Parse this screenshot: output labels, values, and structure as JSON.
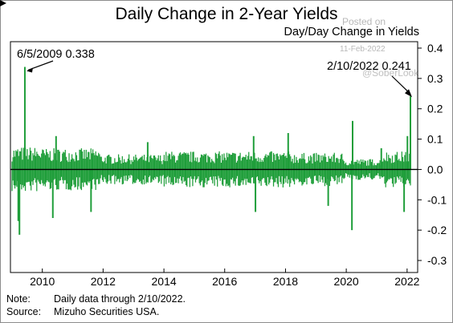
{
  "chart_data": {
    "type": "bar",
    "title": "Daily Change in 2-Year Yields",
    "ylabel": "Day/Day Change in Yields",
    "xlabel": "",
    "x_range": [
      "2009-01-02",
      "2022-02-10"
    ],
    "ylim": [
      -0.3,
      0.4
    ],
    "y_ticks": [
      "-0.3",
      "-0.2",
      "-0.1",
      "0.0",
      "0.1",
      "0.2",
      "0.3",
      "0.4"
    ],
    "x_ticks": [
      "2010",
      "2012",
      "2014",
      "2016",
      "2018",
      "2020",
      "2022"
    ],
    "grid": false,
    "bar_color": "#1f9e3a",
    "zero_line_color": "#000000",
    "series": [
      {
        "values": [
          {
            "date": "2009-06-05",
            "value": 0.338
          },
          {
            "date": "2009-04-01",
            "value": -0.215
          },
          {
            "date": "2009-03-18",
            "value": -0.17
          },
          {
            "date": "2010-05-07",
            "value": -0.16
          },
          {
            "date": "2010-06-15",
            "value": 0.11
          },
          {
            "date": "2011-08-09",
            "value": -0.14
          },
          {
            "date": "2013-06-20",
            "value": 0.09
          },
          {
            "date": "2016-12-14",
            "value": 0.11
          },
          {
            "date": "2017-01-05",
            "value": -0.14
          },
          {
            "date": "2018-02-02",
            "value": 0.12
          },
          {
            "date": "2019-05-29",
            "value": -0.12
          },
          {
            "date": "2020-03-09",
            "value": -0.2
          },
          {
            "date": "2020-03-17",
            "value": 0.16
          },
          {
            "date": "2021-02-25",
            "value": 0.07
          },
          {
            "date": "2021-11-26",
            "value": -0.14
          },
          {
            "date": "2022-01-05",
            "value": 0.11
          },
          {
            "date": "2022-02-10",
            "value": 0.241
          }
        ]
      }
    ],
    "annotations": [
      {
        "text": "6/5/2009 0.338",
        "date": "2009-06-05",
        "value": 0.338
      },
      {
        "text": "2/10/2022 0.241",
        "date": "2022-02-10",
        "value": 0.241
      }
    ]
  },
  "footer": {
    "note_label": "Note:",
    "note_text": "Daily data through 2/10/2022.",
    "source_label": "Source:",
    "source_text": "Mizuho Securities USA."
  },
  "watermark": {
    "posted": "Posted on",
    "date": "11-Feb-2022",
    "handle": "@SoberLook",
    "site": "ISABELNET"
  }
}
